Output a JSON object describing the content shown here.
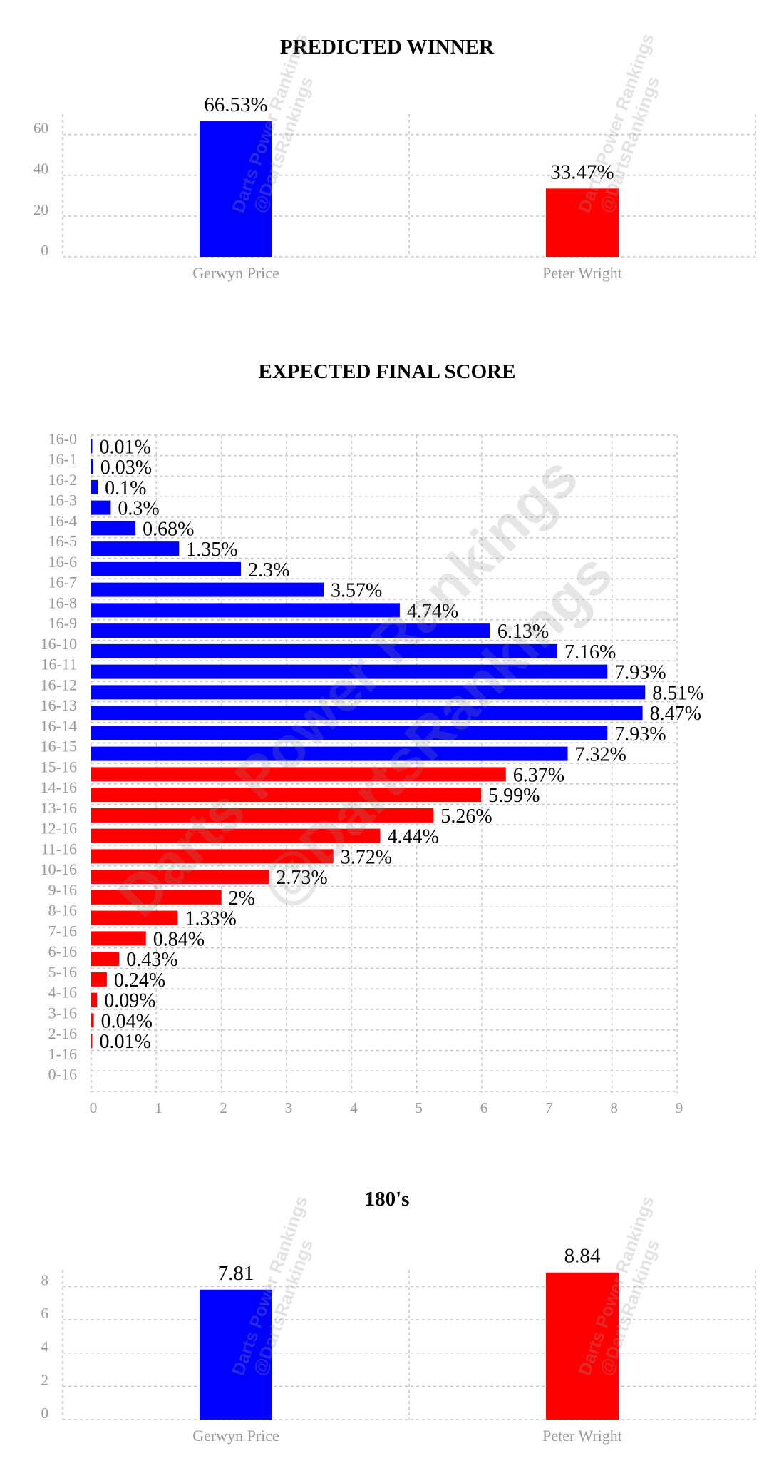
{
  "watermark": {
    "line1": "Darts Power Rankings",
    "line2": "@DartsRankings"
  },
  "colors": {
    "player1": "#0000ff",
    "player2": "#ff0000",
    "grid": "#c8c8c8",
    "tick": "#999999"
  },
  "chart_data": [
    {
      "type": "bar",
      "title": "PREDICTED WINNER",
      "categories": [
        "Gerwyn Price",
        "Peter Wright"
      ],
      "values": [
        66.53,
        33.47
      ],
      "value_labels": [
        "66.53%",
        "33.47%"
      ],
      "yticks": [
        0,
        20,
        40,
        60
      ],
      "ylim": [
        0,
        70
      ],
      "colors": [
        "#0000ff",
        "#ff0000"
      ],
      "grid": true
    },
    {
      "type": "bar",
      "orientation": "horizontal",
      "title": "EXPECTED FINAL SCORE",
      "categories": [
        "16-0",
        "16-1",
        "16-2",
        "16-3",
        "16-4",
        "16-5",
        "16-6",
        "16-7",
        "16-8",
        "16-9",
        "16-10",
        "16-11",
        "16-12",
        "16-13",
        "16-14",
        "16-15",
        "15-16",
        "14-16",
        "13-16",
        "12-16",
        "11-16",
        "10-16",
        "9-16",
        "8-16",
        "7-16",
        "6-16",
        "5-16",
        "4-16",
        "3-16",
        "2-16",
        "1-16",
        "0-16"
      ],
      "values": [
        0.01,
        0.03,
        0.1,
        0.3,
        0.68,
        1.35,
        2.3,
        3.57,
        4.74,
        6.13,
        7.16,
        7.93,
        8.51,
        8.47,
        7.93,
        7.32,
        6.37,
        5.99,
        5.26,
        4.44,
        3.72,
        2.73,
        2,
        1.33,
        0.84,
        0.43,
        0.24,
        0.09,
        0.04,
        0.01,
        null,
        null
      ],
      "value_labels": [
        "0.01%",
        "0.03%",
        "0.1%",
        "0.3%",
        "0.68%",
        "1.35%",
        "2.3%",
        "3.57%",
        "4.74%",
        "6.13%",
        "7.16%",
        "7.93%",
        "8.51%",
        "8.47%",
        "7.93%",
        "7.32%",
        "6.37%",
        "5.99%",
        "5.26%",
        "4.44%",
        "3.72%",
        "2.73%",
        "2%",
        "1.33%",
        "0.84%",
        "0.43%",
        "0.24%",
        "0.09%",
        "0.04%",
        "0.01%",
        "",
        ""
      ],
      "xticks": [
        0,
        1,
        2,
        3,
        4,
        5,
        6,
        7,
        8,
        9
      ],
      "xlim": [
        0,
        9
      ],
      "split_index": 16,
      "grid": true
    },
    {
      "type": "bar",
      "title": "180's",
      "categories": [
        "Gerwyn Price",
        "Peter Wright"
      ],
      "values": [
        7.81,
        8.84
      ],
      "value_labels": [
        "7.81",
        "8.84"
      ],
      "yticks": [
        0,
        2,
        4,
        6,
        8
      ],
      "ylim": [
        0,
        9
      ],
      "colors": [
        "#0000ff",
        "#ff0000"
      ],
      "grid": true
    }
  ]
}
